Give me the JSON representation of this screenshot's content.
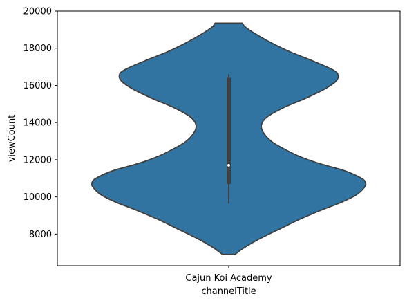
{
  "chart_data": {
    "type": "violin",
    "title": "",
    "xlabel": "channelTitle",
    "ylabel": "viewCount",
    "categories": [
      "Cajun Koi Academy"
    ],
    "ylim": [
      6300,
      20000
    ],
    "yticks": [
      8000,
      10000,
      12000,
      14000,
      16000,
      18000,
      20000
    ],
    "grid": false,
    "colors": {
      "violin_fill": "#3274a1",
      "edge": "#3f3f3f",
      "box": "#3f3f3f",
      "median_marker": "#ffffff"
    },
    "violins": [
      {
        "category": "Cajun Koi Academy",
        "profile": [
          {
            "y": 6900,
            "half_width": 0.045
          },
          {
            "y": 7300,
            "half_width": 0.12
          },
          {
            "y": 7800,
            "half_width": 0.24
          },
          {
            "y": 8300,
            "half_width": 0.38
          },
          {
            "y": 8800,
            "half_width": 0.52
          },
          {
            "y": 9300,
            "half_width": 0.68
          },
          {
            "y": 9700,
            "half_width": 0.82
          },
          {
            "y": 10100,
            "half_width": 0.93
          },
          {
            "y": 10500,
            "half_width": 0.99
          },
          {
            "y": 10750,
            "half_width": 1.0
          },
          {
            "y": 11000,
            "half_width": 0.97
          },
          {
            "y": 11400,
            "half_width": 0.85
          },
          {
            "y": 11800,
            "half_width": 0.66
          },
          {
            "y": 12200,
            "half_width": 0.51
          },
          {
            "y": 12600,
            "half_width": 0.4
          },
          {
            "y": 13000,
            "half_width": 0.31
          },
          {
            "y": 13500,
            "half_width": 0.25
          },
          {
            "y": 13900,
            "half_width": 0.24
          },
          {
            "y": 14300,
            "half_width": 0.28
          },
          {
            "y": 14800,
            "half_width": 0.4
          },
          {
            "y": 15300,
            "half_width": 0.56
          },
          {
            "y": 15800,
            "half_width": 0.7
          },
          {
            "y": 16200,
            "half_width": 0.78
          },
          {
            "y": 16500,
            "half_width": 0.8
          },
          {
            "y": 16800,
            "half_width": 0.77
          },
          {
            "y": 17300,
            "half_width": 0.62
          },
          {
            "y": 17800,
            "half_width": 0.45
          },
          {
            "y": 18300,
            "half_width": 0.31
          },
          {
            "y": 18800,
            "half_width": 0.19
          },
          {
            "y": 19150,
            "half_width": 0.12
          },
          {
            "y": 19350,
            "half_width": 0.1
          }
        ],
        "whisker_low": 9650,
        "q1": 10700,
        "median": 11700,
        "q3": 16400,
        "whisker_high": 16600
      }
    ]
  }
}
